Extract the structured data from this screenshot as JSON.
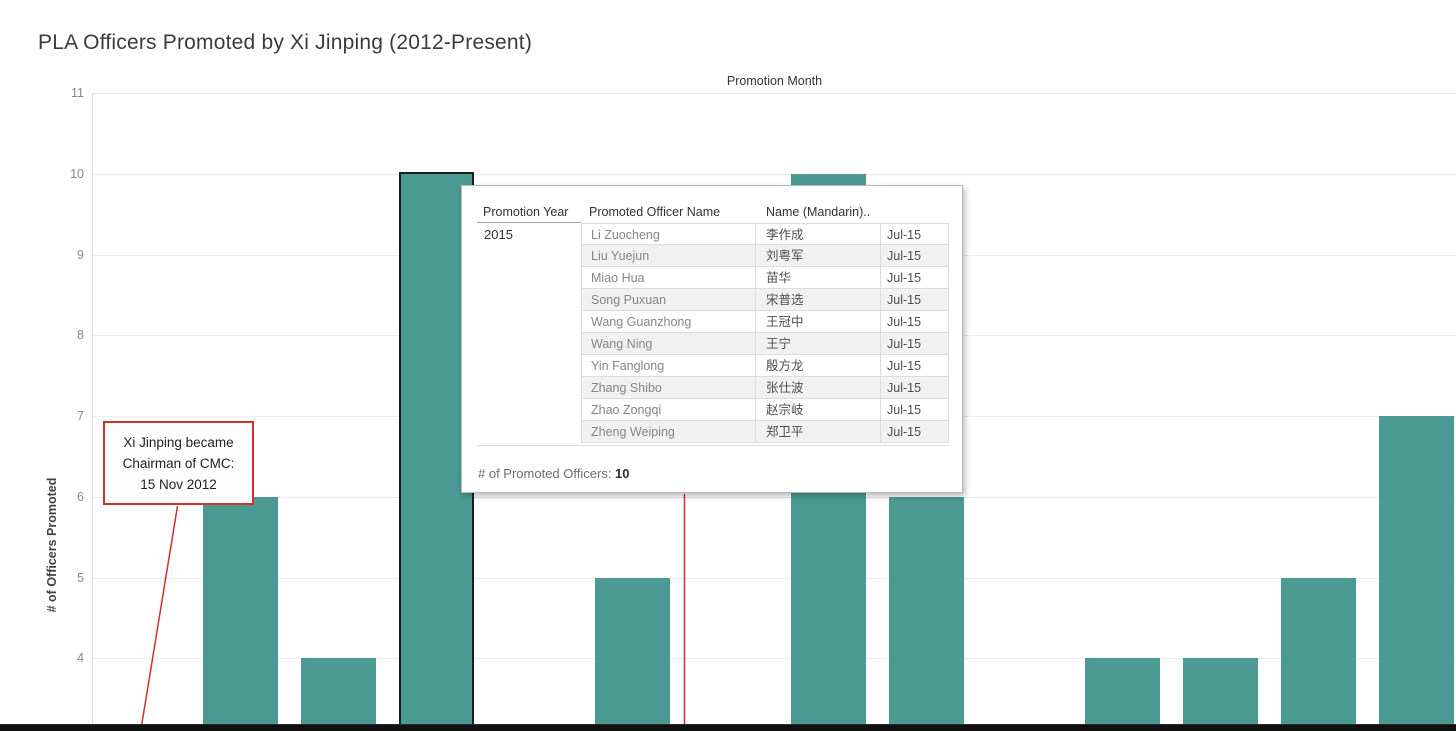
{
  "title": "PLA Officers Promoted by Xi Jinping (2012-Present)",
  "axes": {
    "x_title": "Promotion Month",
    "y_title": "# of Officers Promoted"
  },
  "annotation": {
    "lines": [
      "Xi Jinping became",
      "Chairman of CMC:",
      "15 Nov 2012"
    ]
  },
  "tooltip": {
    "columns": [
      "Promotion Year",
      "Promoted Officer Name",
      "Name (Mandarin).."
    ],
    "promotion_year": "2015",
    "rows": [
      {
        "name": "Li Zuocheng",
        "mandarin": "李作成",
        "month": "Jul-15"
      },
      {
        "name": "Liu Yuejun",
        "mandarin": "刘粤军",
        "month": "Jul-15"
      },
      {
        "name": "Miao Hua",
        "mandarin": "苗华",
        "month": "Jul-15"
      },
      {
        "name": "Song Puxuan",
        "mandarin": "宋普选",
        "month": "Jul-15"
      },
      {
        "name": "Wang Guanzhong",
        "mandarin": "王冠中",
        "month": "Jul-15"
      },
      {
        "name": "Wang Ning",
        "mandarin": "王宁",
        "month": "Jul-15"
      },
      {
        "name": "Yin Fanglong",
        "mandarin": "殷方龙",
        "month": "Jul-15"
      },
      {
        "name": "Zhang Shibo",
        "mandarin": "张仕波",
        "month": "Jul-15"
      },
      {
        "name": "Zhao Zongqi",
        "mandarin": "赵宗岐",
        "month": "Jul-15"
      },
      {
        "name": "Zheng Weiping",
        "mandarin": "郑卫平",
        "month": "Jul-15"
      }
    ],
    "summary_label": "# of Promoted Officers: ",
    "summary_value": "10"
  },
  "colors": {
    "bar": "#4a9a93",
    "annotation_red": "#cf312b",
    "selected_bar_border": "#1c1c1c",
    "gridline": "#ececec"
  },
  "chart_data": {
    "type": "bar",
    "title": "PLA Officers Promoted by Xi Jinping (2012-Present)",
    "xlabel": "Promotion Month",
    "ylabel": "# of Officers Promoted",
    "yticks": [
      11,
      10,
      9,
      8,
      7,
      6,
      5,
      4
    ],
    "visible_value_range": [
      3.1,
      11
    ],
    "x_tick_labels_visible": false,
    "grid": true,
    "legend": false,
    "values": [
      null,
      6,
      4,
      10,
      null,
      5,
      null,
      10,
      6,
      null,
      4,
      4,
      5,
      7
    ],
    "selected_bar_index": 3,
    "hovered_bar": {
      "promotion_year": "2015",
      "month": "Jul-15",
      "count": 10
    }
  }
}
